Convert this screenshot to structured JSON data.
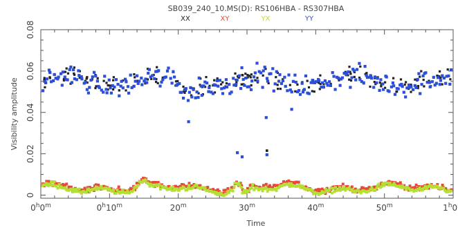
{
  "chart_data": {
    "type": "scatter",
    "title": "SB039_240_10.MS(D): RS106HBA  -  RS307HBA",
    "xlabel": "Time",
    "ylabel": "Visibility amplitude",
    "xlim": [
      0,
      60
    ],
    "ylim": [
      -0.0015,
      0.08
    ],
    "y_ticks": [
      "0",
      "0.02",
      "0.04",
      "0.06",
      "0.08"
    ],
    "y_tick_values": [
      0,
      0.02,
      0.04,
      0.06,
      0.08
    ],
    "x_ticks": [
      {
        "value": 0,
        "main": "0",
        "h": "h",
        "min": "0",
        "m": "m"
      },
      {
        "value": 10,
        "main": "0",
        "h": "h",
        "min": "10",
        "m": "m"
      },
      {
        "value": 20,
        "main": "20",
        "h": "",
        "min": "",
        "m": "m"
      },
      {
        "value": 30,
        "main": "30",
        "h": "",
        "min": "",
        "m": "m"
      },
      {
        "value": 40,
        "main": "40",
        "h": "",
        "min": "",
        "m": "m"
      },
      {
        "value": 50,
        "main": "50",
        "h": "",
        "min": "",
        "m": "m"
      },
      {
        "value": 60,
        "main": "1",
        "h": "h",
        "min": "0",
        "m": "m"
      }
    ],
    "legend": [
      {
        "name": "XX",
        "color": "#222222"
      },
      {
        "name": "XY",
        "color": "#e84a3a"
      },
      {
        "name": "YX",
        "color": "#b4e033"
      },
      {
        "name": "YY",
        "color": "#2d4fd8"
      }
    ],
    "grid": false,
    "series_summary": [
      {
        "name": "XX",
        "mean": 0.055,
        "range": [
          0.04,
          0.065
        ],
        "n_points": 200
      },
      {
        "name": "YY",
        "mean": 0.055,
        "range": [
          0.035,
          0.066
        ],
        "n_points": 280
      },
      {
        "name": "XY",
        "mean": 0.003,
        "range": [
          0.0,
          0.009
        ],
        "n_points": 330
      },
      {
        "name": "YX",
        "mean": 0.003,
        "range": [
          0.0,
          0.008
        ],
        "n_points": 330
      }
    ],
    "outliers": [
      {
        "series": "YY",
        "x": 28.6,
        "y": 0.0205
      },
      {
        "series": "YY",
        "x": 29.3,
        "y": 0.0185
      },
      {
        "series": "XX",
        "x": 32.9,
        "y": 0.0215
      },
      {
        "series": "YY",
        "x": 32.9,
        "y": 0.0195
      },
      {
        "series": "YY",
        "x": 21.5,
        "y": 0.0355
      },
      {
        "series": "YY",
        "x": 32.8,
        "y": 0.0375
      },
      {
        "series": "YY",
        "x": 36.5,
        "y": 0.0415
      }
    ]
  }
}
